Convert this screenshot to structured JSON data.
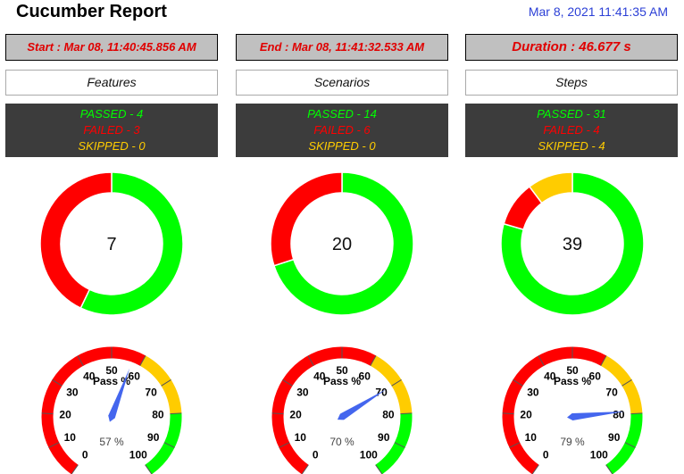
{
  "header": {
    "title": "Cucumber Report",
    "timestamp": "Mar 8, 2021 11:41:35 AM"
  },
  "times": {
    "start": "Start : Mar 08, 11:40:45.856 AM",
    "end": "End : Mar 08, 11:41:32.533 AM",
    "duration": "Duration : 46.677 s"
  },
  "colors": {
    "passed": "#00ff00",
    "failed": "#ff0000",
    "skipped": "#ffcc00",
    "needle": "#4466ee"
  },
  "sections": [
    {
      "label": "Features",
      "passed": "PASSED - 4",
      "failed": "FAILED - 3",
      "skipped": "SKIPPED - 0",
      "total": "7",
      "pass_label": "Pass %",
      "pass_value": "57 %",
      "counts": {
        "passed": 4,
        "failed": 3,
        "skipped": 0
      },
      "pass_percent": 57
    },
    {
      "label": "Scenarios",
      "passed": "PASSED - 14",
      "failed": "FAILED - 6",
      "skipped": "SKIPPED - 0",
      "total": "20",
      "pass_label": "Pass %",
      "pass_value": "70 %",
      "counts": {
        "passed": 14,
        "failed": 6,
        "skipped": 0
      },
      "pass_percent": 70
    },
    {
      "label": "Steps",
      "passed": "PASSED - 31",
      "failed": "FAILED - 4",
      "skipped": "SKIPPED - 4",
      "total": "39",
      "pass_label": "Pass %",
      "pass_value": "79 %",
      "counts": {
        "passed": 31,
        "failed": 4,
        "skipped": 4
      },
      "pass_percent": 79
    }
  ],
  "gauge_ticks": [
    "0",
    "10",
    "20",
    "30",
    "40",
    "50",
    "60",
    "70",
    "80",
    "90",
    "100"
  ],
  "gauge_bands": [
    {
      "from": 0,
      "to": 60,
      "color": "#ff0000"
    },
    {
      "from": 60,
      "to": 80,
      "color": "#ffcc00"
    },
    {
      "from": 80,
      "to": 100,
      "color": "#00ff00"
    }
  ]
}
